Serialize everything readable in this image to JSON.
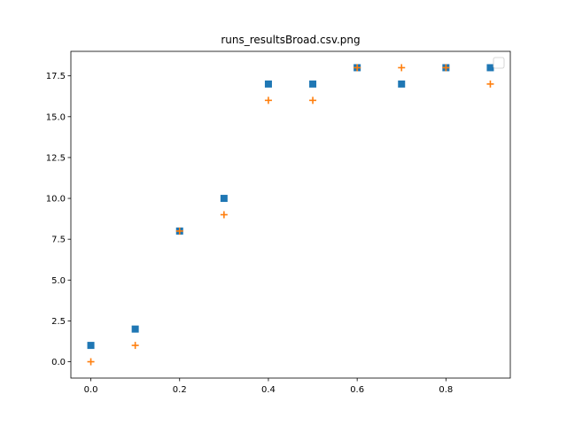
{
  "chart_data": {
    "type": "scatter",
    "title": "runs_resultsBroad.csv.png",
    "xlabel": "",
    "ylabel": "",
    "xlim": [
      -0.045,
      0.945
    ],
    "ylim": [
      -1.0,
      19.0
    ],
    "x_ticks": [
      0.0,
      0.2,
      0.4,
      0.6,
      0.8
    ],
    "x_tick_labels": [
      "0.0",
      "0.2",
      "0.4",
      "0.6",
      "0.8"
    ],
    "y_ticks": [
      0.0,
      2.5,
      5.0,
      7.5,
      10.0,
      12.5,
      15.0,
      17.5
    ],
    "y_tick_labels": [
      "0.0",
      "2.5",
      "5.0",
      "7.5",
      "10.0",
      "12.5",
      "15.0",
      "17.5"
    ],
    "grid": false,
    "legend": {
      "placement": "top-right",
      "entries": []
    },
    "series": [
      {
        "marker": "square",
        "color": "#1f77b4",
        "x": [
          0.0,
          0.1,
          0.2,
          0.3,
          0.4,
          0.5,
          0.6,
          0.7,
          0.8,
          0.9
        ],
        "y": [
          1,
          2,
          8,
          10,
          17,
          17,
          18,
          17,
          18,
          18
        ]
      },
      {
        "marker": "plus",
        "color": "#ff7f0e",
        "x": [
          0.0,
          0.1,
          0.2,
          0.3,
          0.4,
          0.5,
          0.6,
          0.7,
          0.8,
          0.9
        ],
        "y": [
          0,
          1,
          8,
          9,
          16,
          16,
          18,
          18,
          18,
          17
        ]
      }
    ]
  }
}
